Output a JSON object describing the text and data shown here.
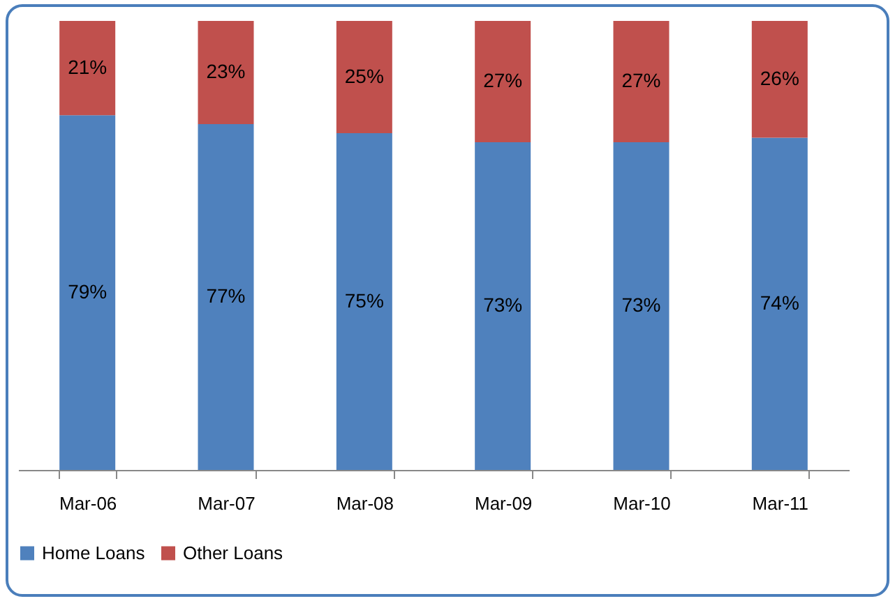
{
  "chart_data": {
    "type": "bar",
    "stacked": true,
    "categories": [
      "Mar-06",
      "Mar-07",
      "Mar-08",
      "Mar-09",
      "Mar-10",
      "Mar-11"
    ],
    "series": [
      {
        "name": "Home Loans",
        "color": "#4f81bd",
        "values": [
          79,
          77,
          75,
          73,
          73,
          74
        ],
        "value_labels": [
          "79%",
          "77%",
          "75%",
          "73%",
          "73%",
          "74%"
        ]
      },
      {
        "name": "Other Loans",
        "color": "#c0504d",
        "values": [
          21,
          23,
          25,
          27,
          27,
          26
        ],
        "value_labels": [
          "21%",
          "23%",
          "25%",
          "27%",
          "27%",
          "26%"
        ]
      }
    ],
    "legend": "bottom",
    "grid": false
  }
}
